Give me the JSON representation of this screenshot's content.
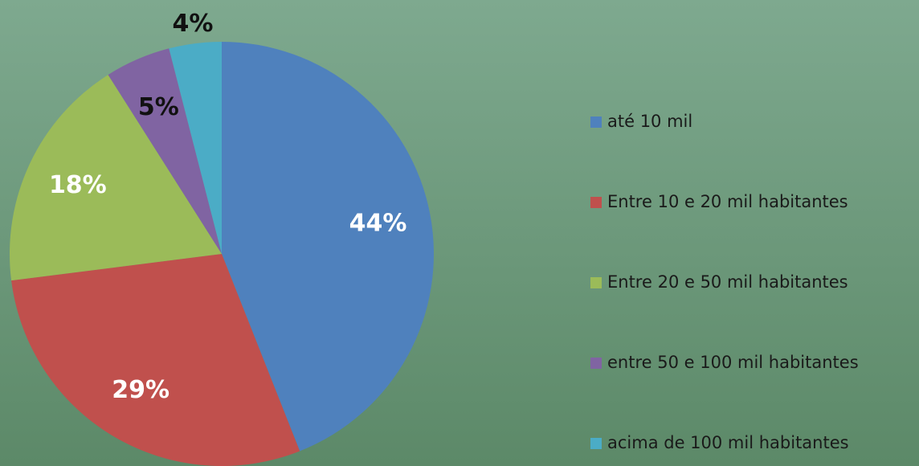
{
  "chart_data": {
    "type": "pie",
    "categories": [
      "até 10 mil",
      "Entre 10 e 20 mil habitantes",
      "Entre 20 e 50 mil habitantes",
      "entre 50 e 100 mil habitantes",
      "acima de 100 mil habitantes"
    ],
    "values": [
      44,
      29,
      18,
      5,
      4
    ],
    "value_labels": [
      "44%",
      "29%",
      "18%",
      "5%",
      "4%"
    ],
    "colors": [
      "#4f81bd",
      "#c0504d",
      "#9bbb59",
      "#8064a2",
      "#4bacc6"
    ],
    "legend": "right"
  }
}
